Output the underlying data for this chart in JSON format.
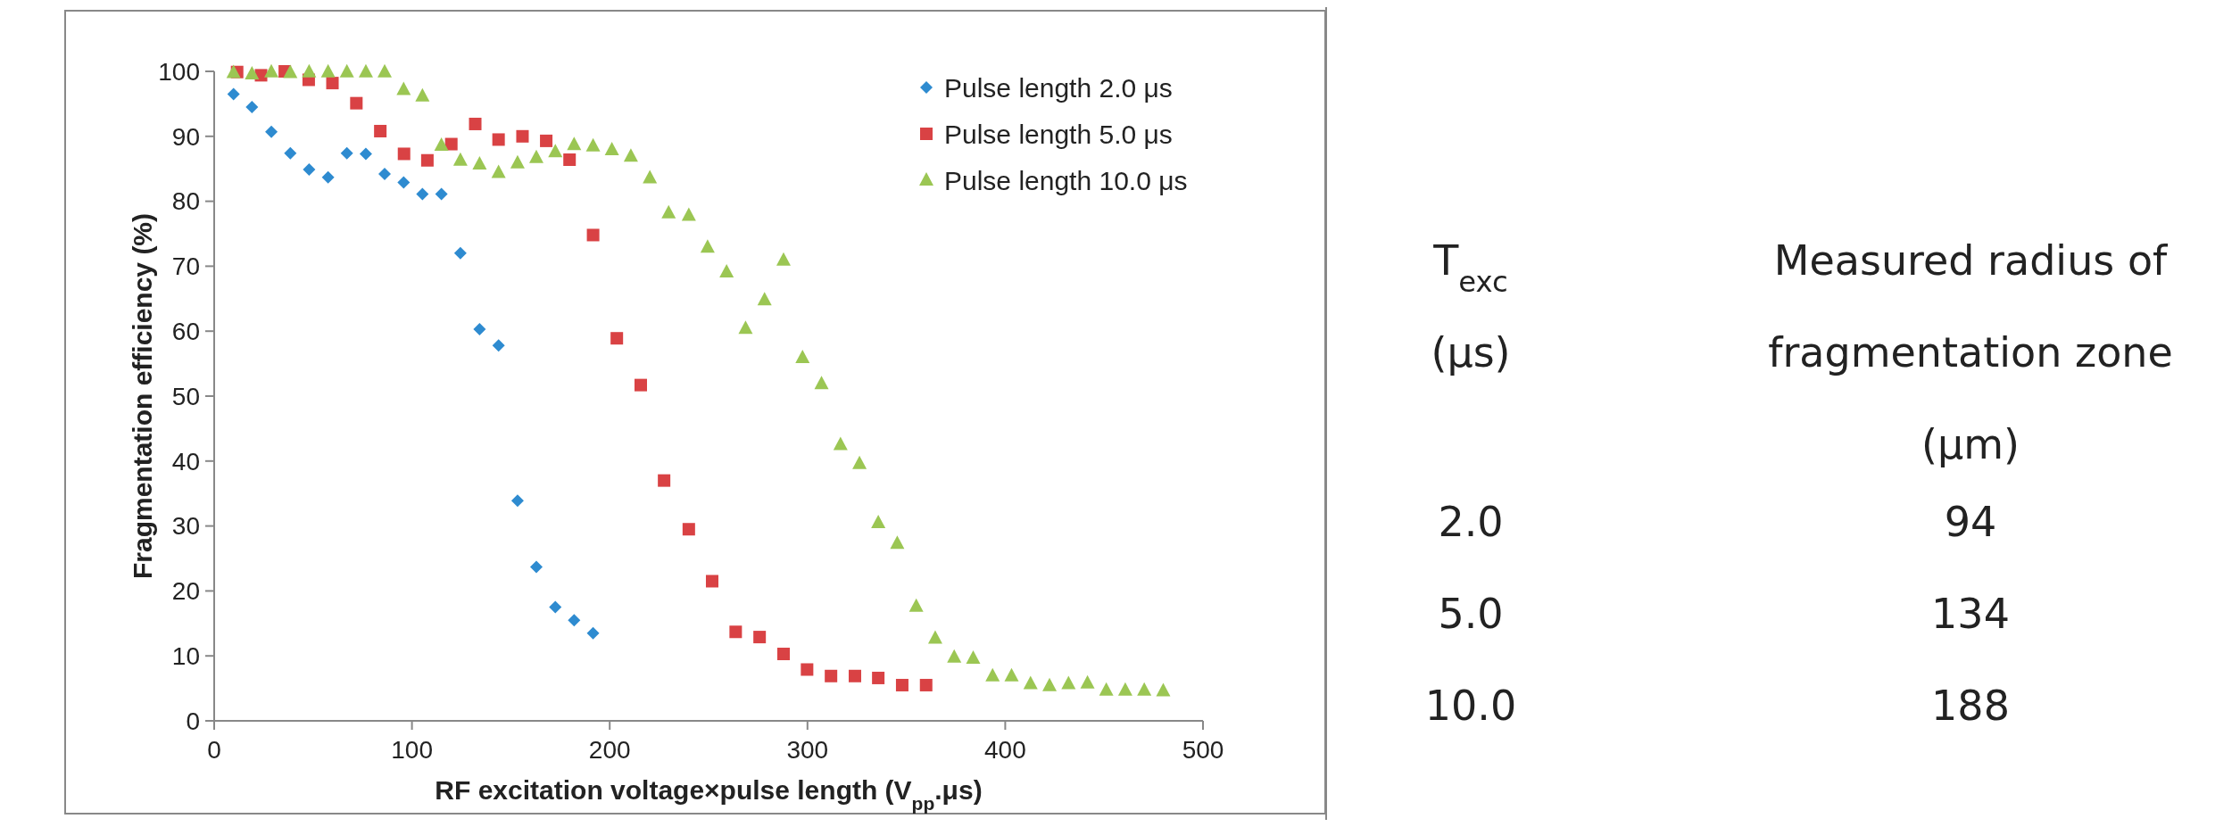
{
  "chart_data": [
    {
      "type": "scatter",
      "xlabel": "RF excitation voltage×pulse length (V$_{pp}$.μs)",
      "ylabel": "Fragmentation efficiency (%)",
      "xlim": [
        0,
        500
      ],
      "ylim": [
        0,
        100
      ],
      "xticks": [
        0,
        100,
        200,
        300,
        400,
        500
      ],
      "yticks": [
        0,
        10,
        20,
        30,
        40,
        50,
        60,
        70,
        80,
        90,
        100
      ],
      "grid": false,
      "legend": "top right",
      "series": [
        {
          "name": "Pulse length 2.0 μs",
          "color": "#2e8bd0",
          "marker": "diamond",
          "x": [
            9.8,
            19.1,
            28.9,
            38.5,
            48,
            57.6,
            67.1,
            76.7,
            86.2,
            95.8,
            105.3,
            114.9,
            124.5,
            134.2,
            143.8,
            153.4,
            162.9,
            172.5,
            182,
            191.6
          ],
          "values": [
            96.5,
            94.5,
            90.7,
            87.4,
            84.9,
            83.7,
            87.4,
            87.3,
            84.2,
            82.9,
            81.1,
            81.1,
            72,
            60.3,
            57.8,
            33.9,
            23.7,
            17.5,
            15.5,
            13.5
          ]
        },
        {
          "name": "Pulse length 5.0 μs",
          "color": "#d94244",
          "marker": "square",
          "x": [
            11.6,
            23.7,
            35.7,
            47.8,
            59.8,
            71.9,
            84,
            96,
            107.8,
            119.9,
            132,
            143.8,
            155.9,
            167.9,
            179.7,
            191.6,
            203.6,
            215.7,
            227.5,
            240,
            251.8,
            263.7,
            275.8,
            287.9,
            299.8,
            311.9,
            324,
            335.8,
            347.9,
            360
          ],
          "values": [
            99.9,
            99.4,
            100,
            98.7,
            98.2,
            95.1,
            90.8,
            87.3,
            86.3,
            88.8,
            91.9,
            89.5,
            90,
            89.3,
            86.4,
            74.8,
            58.9,
            51.7,
            37,
            29.5,
            21.5,
            13.7,
            12.9,
            10.3,
            7.9,
            6.9,
            6.9,
            6.6,
            5.5,
            5.5
          ]
        },
        {
          "name": "Pulse length 10.0 μs",
          "color": "#9bc653",
          "marker": "triangle",
          "x": [
            9.8,
            19.1,
            28.9,
            38.5,
            48,
            57.6,
            67.1,
            76.7,
            86.2,
            95.8,
            105.3,
            114.9,
            124.5,
            134.2,
            143.8,
            153.4,
            162.9,
            172.5,
            182,
            191.6,
            201.1,
            210.7,
            220.3,
            229.8,
            240,
            249.5,
            259.1,
            268.7,
            278.3,
            287.9,
            297.5,
            307.1,
            316.7,
            326.3,
            335.8,
            345.4,
            355,
            364.6,
            374.2,
            383.8,
            393.6,
            403.2,
            412.8,
            422.4,
            432,
            441.6,
            451.1,
            460.7,
            470.3,
            479.9
          ],
          "values": [
            99.8,
            99.6,
            99.9,
            99.8,
            99.9,
            99.9,
            99.9,
            99.9,
            99.9,
            97.2,
            96.2,
            88.6,
            86.3,
            85.7,
            84.4,
            85.9,
            86.7,
            87.6,
            88.7,
            88.5,
            87.9,
            86.9,
            83.6,
            78.2,
            77.8,
            72.9,
            69.1,
            60.4,
            64.8,
            70.9,
            55.9,
            51.9,
            42.5,
            39.6,
            30.5,
            27.3,
            17.6,
            12.7,
            9.8,
            9.6,
            6.9,
            6.9,
            5.7,
            5.4,
            5.7,
            5.8,
            4.7,
            4.7,
            4.7,
            4.6
          ]
        }
      ]
    },
    {
      "type": "other",
      "annotations": [
        "T$_{exc}$ (μs)",
        "Measured radius of fragmentation zone (μm)",
        "2.0",
        "94",
        "5.0",
        "134",
        "10.0",
        "188"
      ]
    }
  ]
}
